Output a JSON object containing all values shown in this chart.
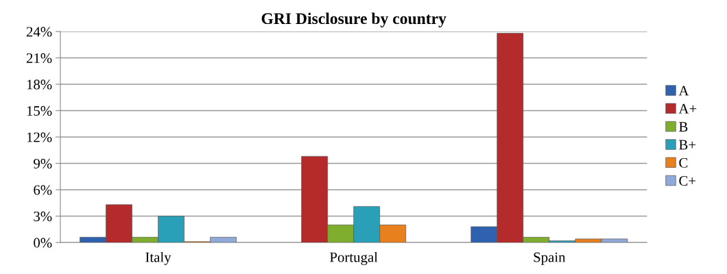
{
  "chart_data": {
    "type": "bar",
    "title": "GRI Disclosure by country",
    "categories": [
      "Italy",
      "Portugal",
      "Spain"
    ],
    "series": [
      {
        "name": "A",
        "color": "#2e62b0",
        "values": [
          0.6,
          0,
          1.8
        ]
      },
      {
        "name": "A+",
        "color": "#b52a2a",
        "values": [
          4.3,
          9.8,
          23.8
        ]
      },
      {
        "name": "B",
        "color": "#7fae2f",
        "values": [
          0.6,
          2.0,
          0.6
        ]
      },
      {
        "name": "B+",
        "color": "#2aa0b8",
        "values": [
          3.0,
          4.1,
          0.2
        ]
      },
      {
        "name": "C",
        "color": "#e8801e",
        "values": [
          0.1,
          2.0,
          0.4
        ]
      },
      {
        "name": "C+",
        "color": "#8fa9d8",
        "values": [
          0.6,
          0,
          0.4
        ]
      }
    ],
    "ylim": [
      0,
      24
    ],
    "yticks": [
      {
        "value": 0,
        "label": "0%"
      },
      {
        "value": 3,
        "label": "3%"
      },
      {
        "value": 6,
        "label": "6%"
      },
      {
        "value": 9,
        "label": "9%"
      },
      {
        "value": 12,
        "label": "12%"
      },
      {
        "value": 15,
        "label": "15%"
      },
      {
        "value": 18,
        "label": "18%"
      },
      {
        "value": 21,
        "label": "21%"
      },
      {
        "value": 24,
        "label": "24%"
      }
    ],
    "grid": "y",
    "legend": "right"
  }
}
